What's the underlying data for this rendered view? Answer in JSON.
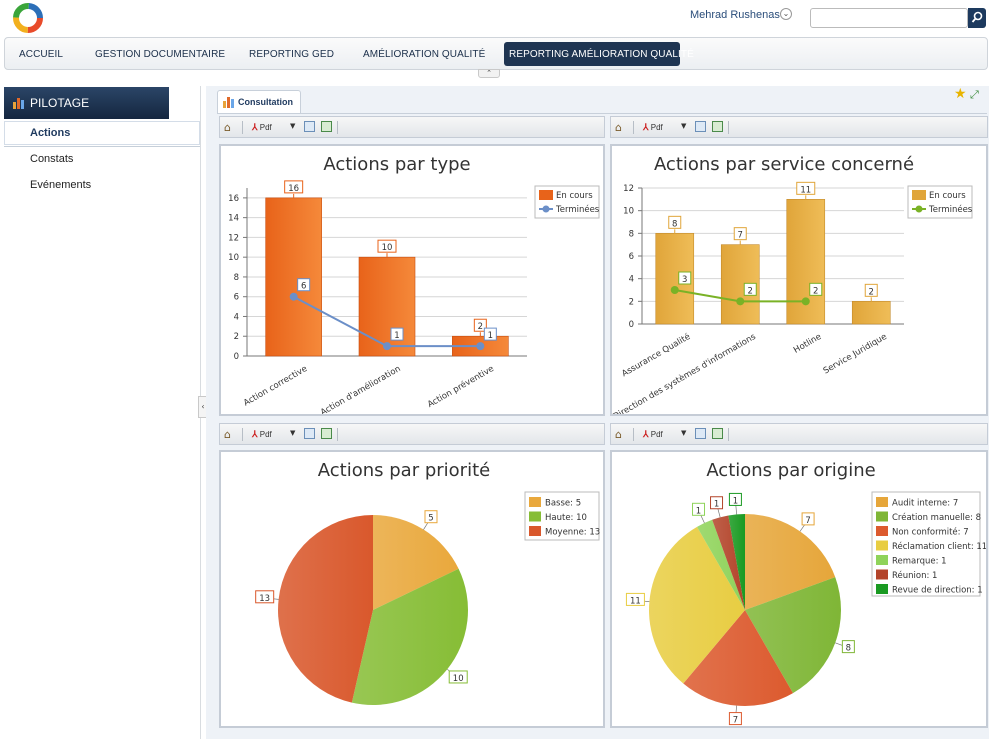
{
  "header": {
    "user_name": "Mehrad Rushenas",
    "search_placeholder": ""
  },
  "nav": {
    "items": [
      {
        "label": "ACCUEIL"
      },
      {
        "label": "GESTION DOCUMENTAIRE"
      },
      {
        "label": "REPORTING GED"
      },
      {
        "label": "AMÉLIORATION QUALITÉ"
      },
      {
        "label": "REPORTING AMÉLIORATION QUALITÉ"
      }
    ],
    "active_index": 4
  },
  "sidebar": {
    "title": "PILOTAGE",
    "items": [
      {
        "label": "Actions",
        "active": true
      },
      {
        "label": "Constats",
        "active": false
      },
      {
        "label": "Evénements",
        "active": false
      }
    ]
  },
  "tabs": [
    {
      "label": "Consultation"
    }
  ],
  "toolbar": {
    "pdf_label": "Pdf"
  },
  "colors": {
    "accent": "#1f3552",
    "orange_bar": "#e8631a",
    "gold_bar": "#e0a53a",
    "blue_line": "#6b8fc8",
    "green_line": "#7ab226"
  },
  "chart_data": [
    {
      "type": "bar",
      "title": "Actions par type",
      "categories": [
        "Action corrective",
        "Action d'amélioration",
        "Action préventive"
      ],
      "series": [
        {
          "name": "En cours",
          "kind": "bar",
          "values": [
            16,
            10,
            2
          ],
          "color": "#e8631a"
        },
        {
          "name": "Terminées",
          "kind": "line",
          "values": [
            6,
            1,
            1
          ],
          "color": "#6b8fc8"
        }
      ],
      "ylim": [
        0,
        17
      ],
      "yticks": [
        0,
        2,
        4,
        6,
        8,
        10,
        12,
        14,
        16
      ],
      "grid": true,
      "legend": "top-right"
    },
    {
      "type": "bar",
      "title": "Actions par service concerné",
      "categories": [
        "Assurance Qualité",
        "Direction des systèmes d'informations",
        "Hotline",
        "Service Juridique"
      ],
      "series": [
        {
          "name": "En cours",
          "kind": "bar",
          "values": [
            8,
            7,
            11,
            2
          ],
          "color": "#e0a53a"
        },
        {
          "name": "Terminées",
          "kind": "line",
          "values": [
            3,
            2,
            2,
            null
          ],
          "color": "#7ab226"
        }
      ],
      "ylim": [
        0,
        12
      ],
      "yticks": [
        0,
        2,
        4,
        6,
        8,
        10,
        12
      ],
      "grid": true,
      "legend": "top-right"
    },
    {
      "type": "pie",
      "title": "Actions par priorité",
      "slices": [
        {
          "label": "Basse",
          "value": 5,
          "color": "#e9a83c"
        },
        {
          "label": "Haute",
          "value": 10,
          "color": "#86bd35"
        },
        {
          "label": "Moyenne",
          "value": 13,
          "color": "#d9582c"
        }
      ],
      "legend": "top-right"
    },
    {
      "type": "pie",
      "title": "Actions par origine",
      "slices": [
        {
          "label": "Audit interne",
          "value": 7,
          "color": "#e6a63a"
        },
        {
          "label": "Création manuelle",
          "value": 8,
          "color": "#7fb636"
        },
        {
          "label": "Non conformité",
          "value": 7,
          "color": "#dc5a2e"
        },
        {
          "label": "Réclamation client",
          "value": 11,
          "color": "#e8cd42"
        },
        {
          "label": "Remarque",
          "value": 1,
          "color": "#8fd35a"
        },
        {
          "label": "Réunion",
          "value": 1,
          "color": "#b3442a"
        },
        {
          "label": "Revue de direction",
          "value": 1,
          "color": "#1a9a22"
        }
      ],
      "legend": "top-right"
    }
  ]
}
